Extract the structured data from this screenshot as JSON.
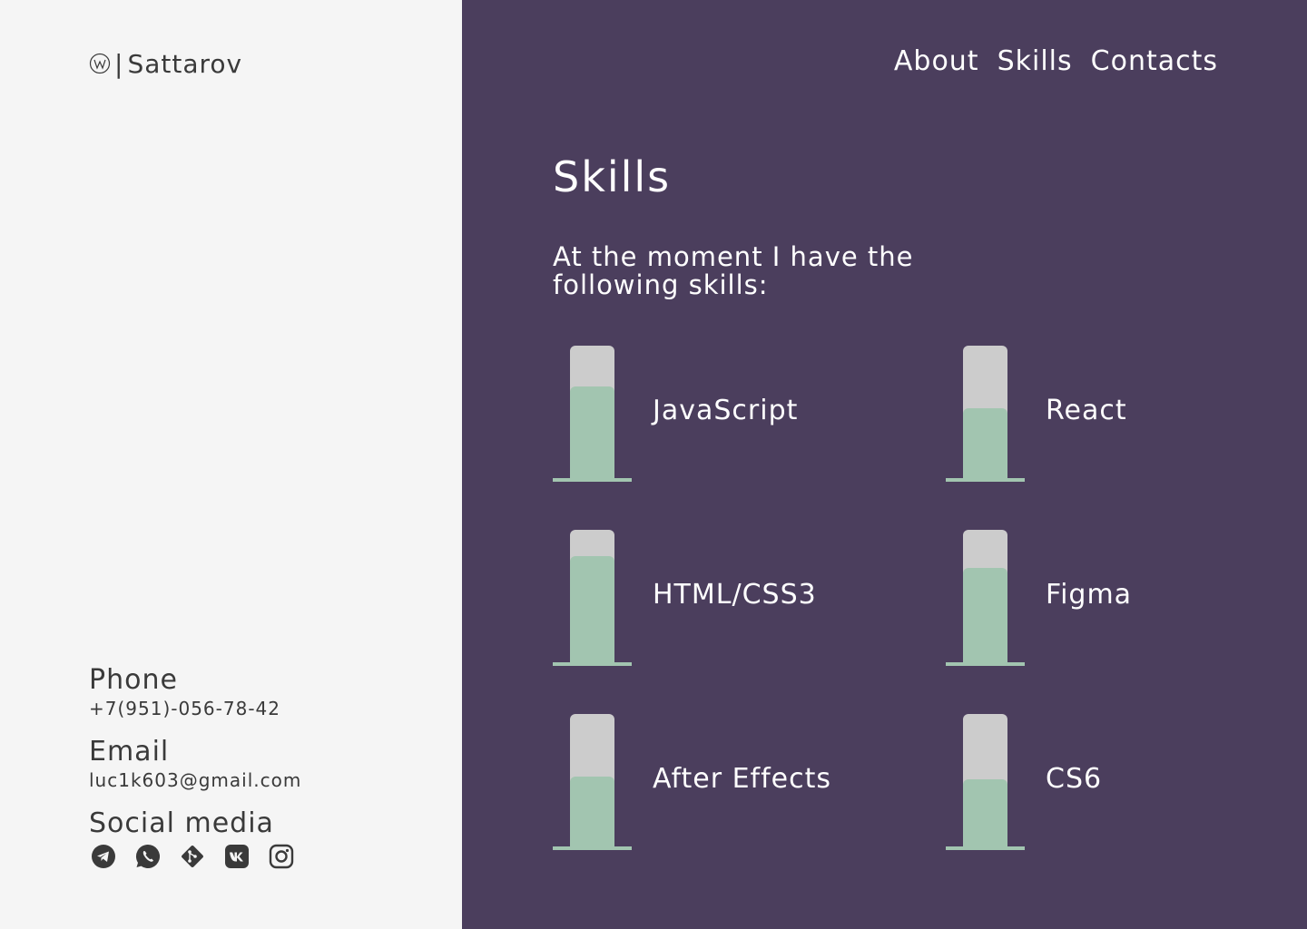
{
  "brand": {
    "mark": "logo-mark-icon",
    "separator": "|",
    "name": "Sattarov"
  },
  "nav": {
    "items": [
      "About",
      "Skills",
      "Contacts"
    ]
  },
  "skills_section": {
    "title": "Skills",
    "intro": "At the moment I have the following skills:",
    "items": [
      {
        "label": "JavaScript",
        "level": 0.69
      },
      {
        "label": "React",
        "level": 0.53
      },
      {
        "label": "HTML/CSS3",
        "level": 0.8
      },
      {
        "label": "Figma",
        "level": 0.71
      },
      {
        "label": "After Effects",
        "level": 0.53
      },
      {
        "label": "CS6",
        "level": 0.51
      }
    ]
  },
  "contacts": {
    "phone_label": "Phone",
    "phone": "+7(951)-056-78-42",
    "email_label": "Email",
    "email": "luc1k603@gmail.com",
    "social_label": "Social media",
    "social": [
      "telegram-icon",
      "whatsapp-icon",
      "git-icon",
      "vk-icon",
      "instagram-icon"
    ]
  },
  "colors": {
    "left_bg": "#f5f5f5",
    "right_bg": "#4b3e5d",
    "accent": "#a2c5b0",
    "track": "#cccccc",
    "text_dark": "#3a3a3a"
  }
}
